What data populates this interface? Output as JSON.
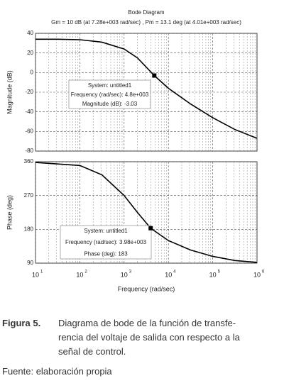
{
  "chart_data": [
    {
      "type": "line",
      "title": "Bode Diagram",
      "subtitle": "Gm = 10 dB (at 7.28e+003 rad/sec) ,  Pm = 13.1 deg (at 4.01e+003 rad/sec)",
      "ylabel": "Magnitude (dB)",
      "log_x": true,
      "grid": true,
      "color": "#000000",
      "x": [
        10,
        31.6,
        100,
        316,
        1000,
        2000,
        4800,
        10000,
        31600,
        100000,
        316000,
        1000000
      ],
      "values": [
        34,
        34,
        33.5,
        31,
        24,
        15,
        -3.03,
        -16,
        -32,
        -46,
        -58,
        -67
      ],
      "xlim": [
        10,
        1000000
      ],
      "xticks": [
        10,
        100,
        1000,
        10000,
        100000,
        1000000
      ],
      "ylim": [
        -80,
        40
      ],
      "yticks": [
        40,
        20,
        0,
        -20,
        -40,
        -60,
        -80
      ],
      "marker": {
        "x": 4800,
        "y": -3.03
      },
      "annotation": [
        "System: untitled1",
        "Frequency (rad/sec): 4.8e+003",
        "Magnitude (dB): -3.03"
      ]
    },
    {
      "type": "line",
      "ylabel": "Phase (deg)",
      "xlabel": "Frequency  (rad/sec)",
      "log_x": true,
      "grid": true,
      "color": "#000000",
      "x": [
        10,
        100,
        316,
        1000,
        2000,
        3980,
        10000,
        31600,
        100000,
        316000,
        1000000
      ],
      "values": [
        358,
        350,
        325,
        270,
        225,
        183,
        150,
        125,
        108,
        97,
        92
      ],
      "xlim": [
        10,
        1000000
      ],
      "xticks": [
        {
          "value": 10,
          "label": "10",
          "exponent": "1"
        },
        {
          "value": 100,
          "label": "10",
          "exponent": "2"
        },
        {
          "value": 1000,
          "label": "10",
          "exponent": "3"
        },
        {
          "value": 10000,
          "label": "10",
          "exponent": "4"
        },
        {
          "value": 100000,
          "label": "10",
          "exponent": "5"
        },
        {
          "value": 1000000,
          "label": "10",
          "exponent": "6"
        }
      ],
      "ylim": [
        90,
        360
      ],
      "yticks": [
        360,
        270,
        180,
        90
      ],
      "marker": {
        "x": 3980,
        "y": 183
      },
      "annotation": [
        "System: untitled1",
        "Frequency (rad/sec): 3.98e+003",
        "Phase (deg): 183"
      ]
    }
  ],
  "caption": {
    "label": "Figura 5.",
    "lines": [
      "Diagrama de bode de la función de transfe-",
      "rencia del voltaje de salida con respecto a la",
      "señal de control."
    ]
  },
  "source": "Fuente: elaboración propia"
}
